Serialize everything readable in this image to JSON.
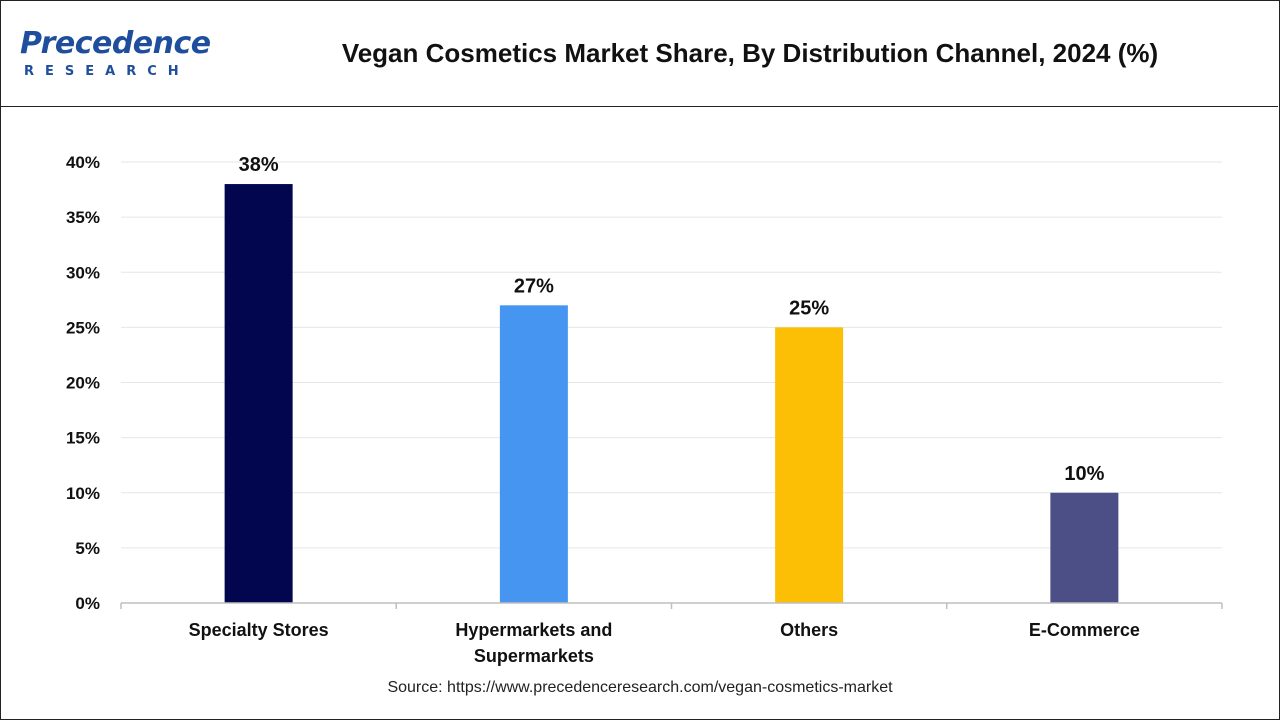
{
  "header": {
    "logo_word": "Precedence",
    "logo_sub": "RESEARCH",
    "title": "Vegan Cosmetics Market Share, By Distribution Channel, 2024 (%)"
  },
  "chart_data": {
    "type": "bar",
    "categories": [
      [
        "Specialty Stores"
      ],
      [
        "Hypermarkets and",
        "Supermarkets"
      ],
      [
        "Others"
      ],
      [
        "E-Commerce"
      ]
    ],
    "values": [
      38,
      27,
      25,
      10
    ],
    "value_labels": [
      "38%",
      "27%",
      "25%",
      "10%"
    ],
    "colors": [
      "#02064f",
      "#4695f0",
      "#fdbe06",
      "#4b4f86"
    ],
    "ylim": [
      0,
      40
    ],
    "yticks": [
      "0%",
      "5%",
      "10%",
      "15%",
      "20%",
      "25%",
      "30%",
      "35%",
      "40%"
    ],
    "grid": true,
    "title": "Vegan Cosmetics Market Share, By Distribution Channel, 2024 (%)"
  },
  "footer": {
    "source": "Source: https://www.precedenceresearch.com/vegan-cosmetics-market"
  }
}
